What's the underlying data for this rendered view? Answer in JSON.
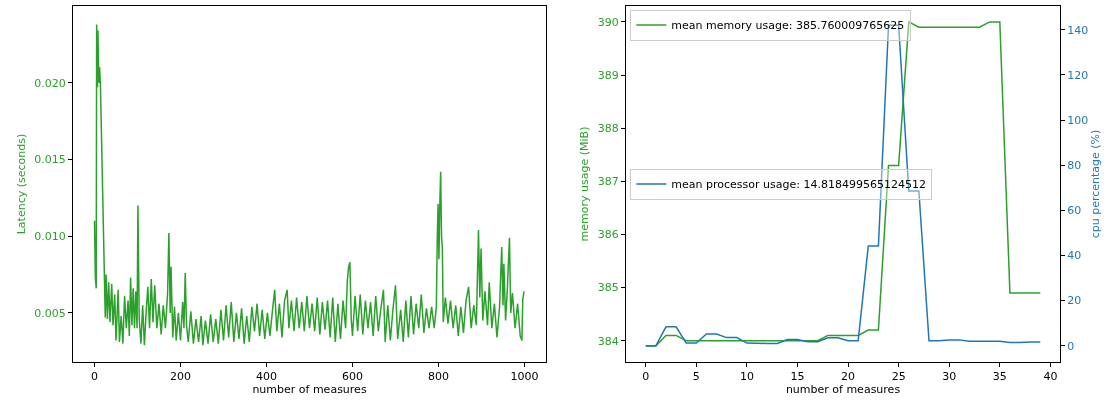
{
  "chart_data": [
    {
      "type": "line",
      "xlabel": "number of measures",
      "ylabel": "Latency (seconds)",
      "xlim": [
        -50,
        1050
      ],
      "xticks": [
        0,
        200,
        400,
        600,
        800,
        1000
      ],
      "ylim": [
        0.0018,
        0.025
      ],
      "yticks": [
        {
          "value": 0.005,
          "label": "0.005"
        },
        {
          "value": 0.01,
          "label": "0.010"
        },
        {
          "value": 0.015,
          "label": "0.015"
        },
        {
          "value": 0.02,
          "label": "0.020"
        }
      ],
      "grid": false,
      "legend": false,
      "marker": "none",
      "line_style": "solid",
      "series": [
        {
          "color": "#2ca02c",
          "x": [
            0,
            2,
            4,
            5,
            7,
            8,
            10,
            12,
            14,
            25,
            27,
            30,
            33,
            36,
            40,
            43,
            47,
            50,
            55,
            58,
            62,
            66,
            70,
            74,
            78,
            81,
            84,
            87,
            90,
            93,
            96,
            99,
            101,
            104,
            108,
            112,
            116,
            120,
            124,
            128,
            132,
            136,
            140,
            145,
            150,
            155,
            160,
            165,
            170,
            173,
            176,
            178,
            182,
            186,
            190,
            195,
            200,
            205,
            208,
            211,
            214,
            218,
            224,
            230,
            236,
            242,
            248,
            252,
            258,
            264,
            270,
            276,
            282,
            288,
            294,
            300,
            306,
            312,
            318,
            324,
            330,
            336,
            342,
            348,
            354,
            360,
            366,
            372,
            378,
            384,
            390,
            396,
            402,
            408,
            414,
            419,
            424,
            430,
            436,
            442,
            448,
            452,
            458,
            464,
            470,
            476,
            482,
            488,
            494,
            500,
            506,
            512,
            518,
            524,
            530,
            536,
            542,
            548,
            554,
            560,
            566,
            572,
            578,
            584,
            588,
            591,
            594,
            597,
            600,
            606,
            612,
            618,
            624,
            630,
            636,
            642,
            648,
            654,
            660,
            666,
            672,
            676,
            682,
            688,
            694,
            700,
            705,
            712,
            718,
            724,
            730,
            736,
            742,
            748,
            754,
            760,
            766,
            772,
            778,
            784,
            790,
            795,
            797,
            799,
            801,
            803,
            805,
            807,
            809,
            811,
            816,
            822,
            828,
            834,
            840,
            846,
            852,
            858,
            864,
            870,
            876,
            882,
            888,
            893,
            896,
            899,
            903,
            908,
            914,
            918,
            924,
            930,
            936,
            942,
            947,
            950,
            952,
            956,
            960,
            965,
            968,
            972,
            978,
            984,
            990,
            994,
            996,
            999
          ],
          "values": [
            0.011,
            0.0073,
            0.0066,
            0.0238,
            0.0197,
            0.0234,
            0.02,
            0.021,
            0.0196,
            0.0047,
            0.0075,
            0.0046,
            0.007,
            0.0044,
            0.0069,
            0.0042,
            0.0062,
            0.0032,
            0.0065,
            0.0031,
            0.0048,
            0.003,
            0.0061,
            0.004,
            0.0058,
            0.0035,
            0.0073,
            0.0042,
            0.0066,
            0.004,
            0.0064,
            0.004,
            0.012,
            0.0046,
            0.003,
            0.0055,
            0.0029,
            0.005,
            0.0067,
            0.004,
            0.0072,
            0.0044,
            0.0068,
            0.004,
            0.0056,
            0.0036,
            0.0055,
            0.004,
            0.0063,
            0.0102,
            0.005,
            0.008,
            0.0034,
            0.0054,
            0.0032,
            0.005,
            0.0032,
            0.0057,
            0.004,
            0.0076,
            0.0042,
            0.0031,
            0.0051,
            0.003,
            0.0046,
            0.0031,
            0.0048,
            0.0029,
            0.0045,
            0.003,
            0.0049,
            0.0031,
            0.0046,
            0.003,
            0.0052,
            0.0032,
            0.0055,
            0.0034,
            0.0057,
            0.0031,
            0.005,
            0.0033,
            0.0053,
            0.003,
            0.0048,
            0.0031,
            0.0054,
            0.0038,
            0.0056,
            0.0035,
            0.0052,
            0.0033,
            0.005,
            0.0035,
            0.0052,
            0.0065,
            0.0038,
            0.0056,
            0.0034,
            0.0058,
            0.0065,
            0.004,
            0.0058,
            0.0038,
            0.006,
            0.004,
            0.0057,
            0.0038,
            0.0061,
            0.004,
            0.0056,
            0.0038,
            0.006,
            0.0036,
            0.0057,
            0.0039,
            0.0058,
            0.0034,
            0.006,
            0.0031,
            0.0056,
            0.0033,
            0.0058,
            0.004,
            0.0071,
            0.008,
            0.0083,
            0.0046,
            0.0035,
            0.0061,
            0.0038,
            0.0062,
            0.0036,
            0.0058,
            0.004,
            0.0057,
            0.0035,
            0.0061,
            0.0038,
            0.0053,
            0.0065,
            0.0031,
            0.0055,
            0.0032,
            0.0052,
            0.0068,
            0.0033,
            0.0052,
            0.0031,
            0.0058,
            0.0034,
            0.0061,
            0.0036,
            0.0056,
            0.004,
            0.0062,
            0.0037,
            0.0053,
            0.004,
            0.0054,
            0.004,
            0.0054,
            0.0097,
            0.0121,
            0.0085,
            0.012,
            0.0142,
            0.01,
            0.0092,
            0.0044,
            0.006,
            0.0043,
            0.0058,
            0.004,
            0.0055,
            0.0035,
            0.0054,
            0.0037,
            0.0058,
            0.0067,
            0.004,
            0.0055,
            0.0042,
            0.0104,
            0.006,
            0.0092,
            0.0045,
            0.0064,
            0.0042,
            0.007,
            0.004,
            0.0056,
            0.0034,
            0.0054,
            0.0093,
            0.0055,
            0.0082,
            0.0045,
            0.0065,
            0.0099,
            0.005,
            0.0063,
            0.004,
            0.0056,
            0.0035,
            0.0032,
            0.0059,
            0.0064
          ]
        }
      ]
    },
    {
      "type": "line",
      "xlabel": "number of measures",
      "ylabel": "memory usage (MiB)",
      "y2label": "cpu percentage (%)",
      "xlim": [
        -1.95,
        40.95
      ],
      "xticks": [
        0,
        5,
        10,
        15,
        20,
        25,
        30,
        35,
        40
      ],
      "ylim": [
        383.6,
        390.3
      ],
      "yticks": [
        384,
        385,
        386,
        387,
        388,
        389,
        390
      ],
      "y2lim": [
        -7.2,
        150.5
      ],
      "y2ticks": [
        0,
        20,
        40,
        60,
        80,
        100,
        120,
        140
      ],
      "grid": false,
      "legend": "top left",
      "marker": "none",
      "line_style": "solid",
      "x": [
        0,
        1,
        2,
        3,
        4,
        5,
        6,
        7,
        8,
        9,
        10,
        11,
        12,
        13,
        14,
        15,
        16,
        17,
        18,
        19,
        20,
        21,
        22,
        23,
        24,
        25,
        26,
        27,
        28,
        29,
        30,
        31,
        32,
        33,
        34,
        35,
        36,
        37,
        38,
        39
      ],
      "series": [
        {
          "name": "mean memory usage: 385.760009765625",
          "color": "#2ca02c",
          "values": [
            383.9,
            383.9,
            384.1,
            384.1,
            384,
            384,
            384,
            384,
            384,
            384,
            384,
            384,
            384,
            384,
            384,
            384,
            384,
            384,
            384.1,
            384.1,
            384.1,
            384.1,
            384.2,
            384.2,
            387.3,
            387.3,
            390,
            389.9,
            389.9,
            389.9,
            389.9,
            389.9,
            389.9,
            389.9,
            390,
            390,
            384.9,
            384.9,
            384.9,
            384.9
          ]
        },
        {
          "name": "mean processor usage: 14.818499565124512",
          "color": "#1f77b4",
          "axis": "y2",
          "values": [
            0,
            0,
            8.4,
            8.4,
            1.2,
            1.2,
            5.2,
            5.2,
            3.6,
            3.6,
            1.2,
            1.1,
            1,
            1,
            2.8,
            2.8,
            1.8,
            1.8,
            3.5,
            3.5,
            2.2,
            2.2,
            44.2,
            44.2,
            142,
            142,
            68.6,
            68.6,
            2.2,
            2.2,
            2.6,
            2.6,
            2,
            2,
            2,
            2,
            1.4,
            1.4,
            1.7,
            1.7
          ]
        }
      ]
    }
  ]
}
